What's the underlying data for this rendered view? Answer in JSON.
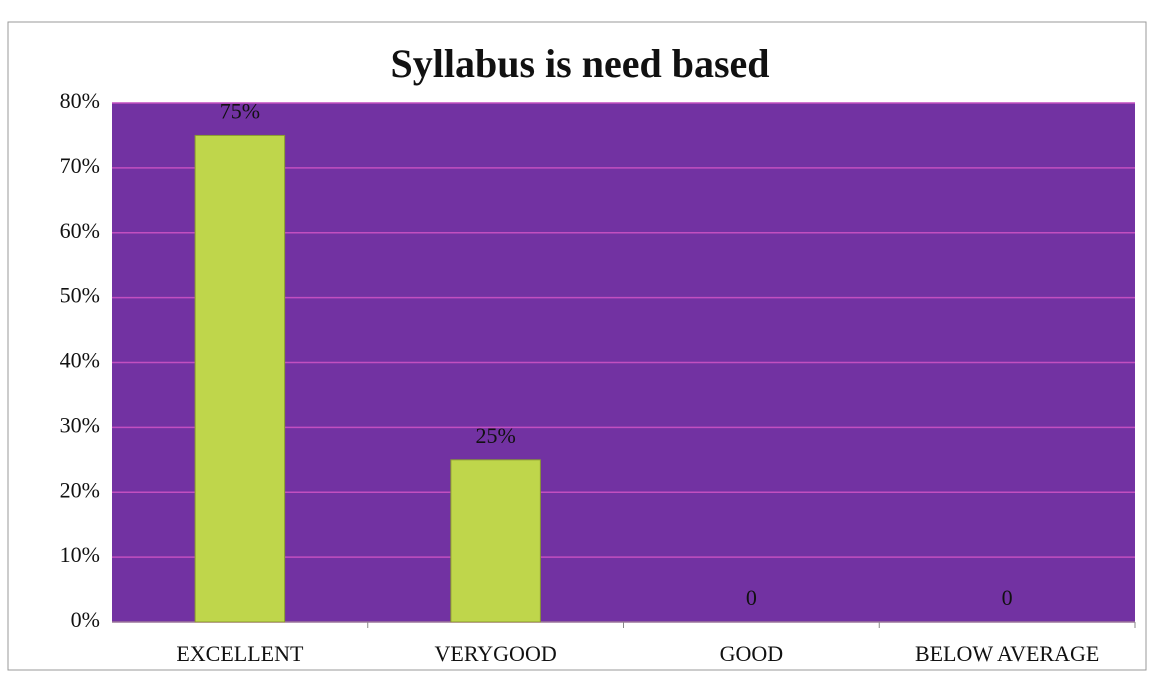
{
  "chart_data": {
    "type": "bar",
    "title": "Syllabus is need based",
    "categories": [
      "EXCELLENT",
      "VERYGOOD",
      "GOOD",
      "BELOW AVERAGE"
    ],
    "values": [
      75,
      25,
      0,
      0
    ],
    "value_labels": [
      "75%",
      "25%",
      "0",
      "0"
    ],
    "color": "#bfd64b",
    "plot_background": "#7232a2",
    "grid_color": "#c24fc0",
    "ylim": [
      0,
      80
    ],
    "yticks": [
      {
        "value": 0,
        "label": "0%"
      },
      {
        "value": 10,
        "label": "10%"
      },
      {
        "value": 20,
        "label": "20%"
      },
      {
        "value": 30,
        "label": "30%"
      },
      {
        "value": 40,
        "label": "40%"
      },
      {
        "value": 50,
        "label": "50%"
      },
      {
        "value": 60,
        "label": "60%"
      },
      {
        "value": 70,
        "label": "70%"
      },
      {
        "value": 80,
        "label": "80%"
      }
    ],
    "grid": true
  }
}
